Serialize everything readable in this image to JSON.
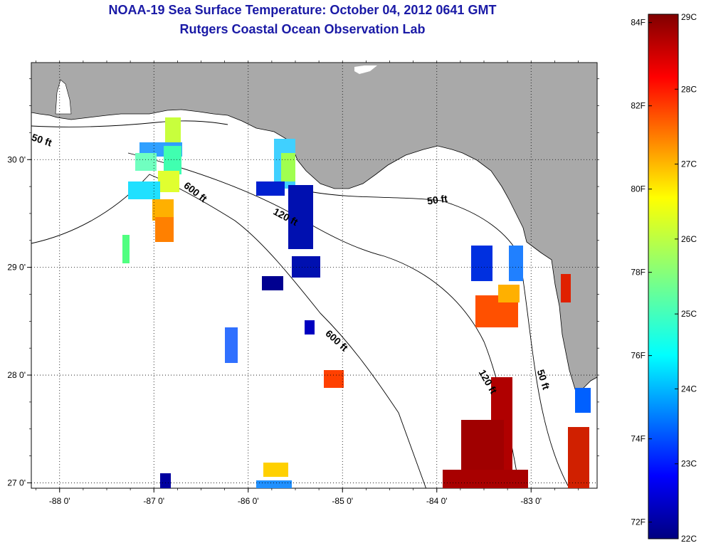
{
  "header": {
    "title": "NOAA-19 Sea Surface Temperature:  October 04, 2012 0641 GMT",
    "subtitle": "Rutgers Coastal Ocean Observation Lab"
  },
  "axes": {
    "x_ticks": [
      "-88 0'",
      "-87 0'",
      "-86 0'",
      "-85 0'",
      "-84 0'",
      "-83 0'"
    ],
    "x_tick_values": [
      -88,
      -87,
      -86,
      -85,
      -84,
      -83
    ],
    "y_ticks": [
      "30 0'",
      "29 0'",
      "28 0'",
      "27 0'"
    ],
    "y_tick_values": [
      30,
      29,
      28,
      27
    ],
    "lon_range": [
      -88.3,
      -82.3
    ],
    "lat_range": [
      26.95,
      30.9
    ],
    "grid": "dotted"
  },
  "contours": [
    {
      "label": "50 ft"
    },
    {
      "label": "600 ft"
    },
    {
      "label": "120 ft"
    },
    {
      "label": "50 ft"
    },
    {
      "label": "600 ft"
    },
    {
      "label": "120 ft"
    },
    {
      "label": "50 ft"
    }
  ],
  "colorbar": {
    "celsius": [
      "29C",
      "28C",
      "27C",
      "26C",
      "25C",
      "24C",
      "23C",
      "22C"
    ],
    "celsius_values": [
      29,
      28,
      27,
      26,
      25,
      24,
      23,
      22
    ],
    "fahrenheit": [
      "84F",
      "82F",
      "80F",
      "78F",
      "76F",
      "74F",
      "72F"
    ],
    "fahrenheit_values": [
      84,
      82,
      80,
      78,
      76,
      74,
      72
    ],
    "range_c": [
      22,
      29
    ],
    "colormap": "jet"
  },
  "colors": {
    "land": "#a9a9a9",
    "water_no_data": "#ffffff",
    "title": "#1a1aa6"
  }
}
